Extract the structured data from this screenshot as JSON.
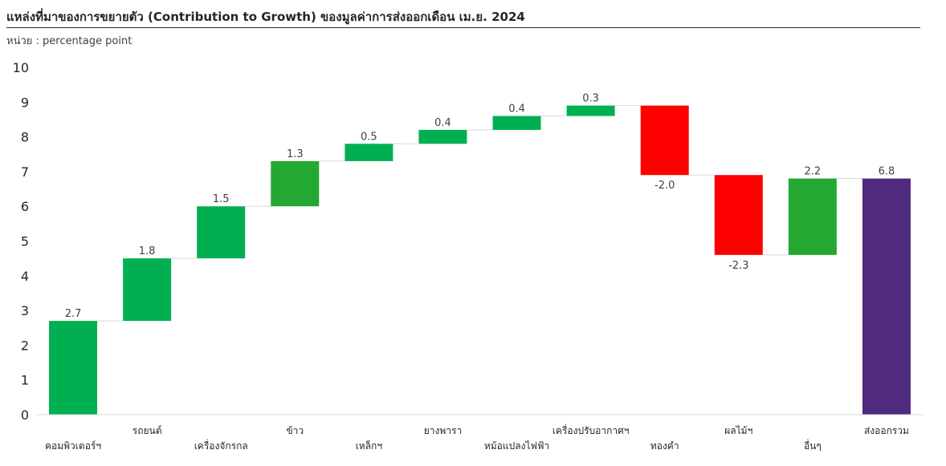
{
  "title": "แหล่งที่มาของการขยายตัว (Contribution to Growth) ของมูลค่าการส่งออกเดือน เม.ย. 2024",
  "subtitle": "หน่วย : percentage point",
  "chart_data": {
    "type": "bar",
    "subtype": "waterfall",
    "categories": [
      "คอมพิวเตอร์ฯ",
      "รถยนต์",
      "เครื่องจักรกล",
      "ข้าว",
      "เหล็กฯ",
      "ยางพารา",
      "หม้อแปลงไฟฟ้า",
      "เครื่องปรับอากาศฯ",
      "ทองคำ",
      "ผลไม้ฯ",
      "อื่นๆ",
      "ส่งออกรวม"
    ],
    "values": [
      2.7,
      1.8,
      1.5,
      1.3,
      0.5,
      0.4,
      0.4,
      0.3,
      -2.0,
      -2.3,
      2.2,
      6.8
    ],
    "data_labels": [
      "2.7",
      "1.8",
      "1.5",
      "1.3",
      "0.5",
      "0.4",
      "0.4",
      "0.3",
      "-2.0",
      "-2.3",
      "2.2",
      "6.8"
    ],
    "is_total": [
      false,
      false,
      false,
      false,
      false,
      false,
      false,
      false,
      false,
      false,
      false,
      true
    ],
    "y_ticks": [
      "0",
      "1",
      "2",
      "3",
      "4",
      "5",
      "6",
      "7",
      "8",
      "9",
      "10"
    ],
    "ylim": [
      0,
      10
    ],
    "grid": false,
    "legend": "none",
    "xlabel": "",
    "ylabel": "",
    "colors": {
      "increase": "#00b050",
      "increase_alt": "#23a832",
      "decrease": "#ff0000",
      "total": "#4f2a7f",
      "connector": "#d9d9d9",
      "axis": "#d9d9d9"
    },
    "bar_colors": [
      "#00b050",
      "#00b050",
      "#00b050",
      "#23a832",
      "#00b050",
      "#00b050",
      "#00b050",
      "#00b050",
      "#ff0000",
      "#ff0000",
      "#23a832",
      "#4f2a7f"
    ]
  }
}
